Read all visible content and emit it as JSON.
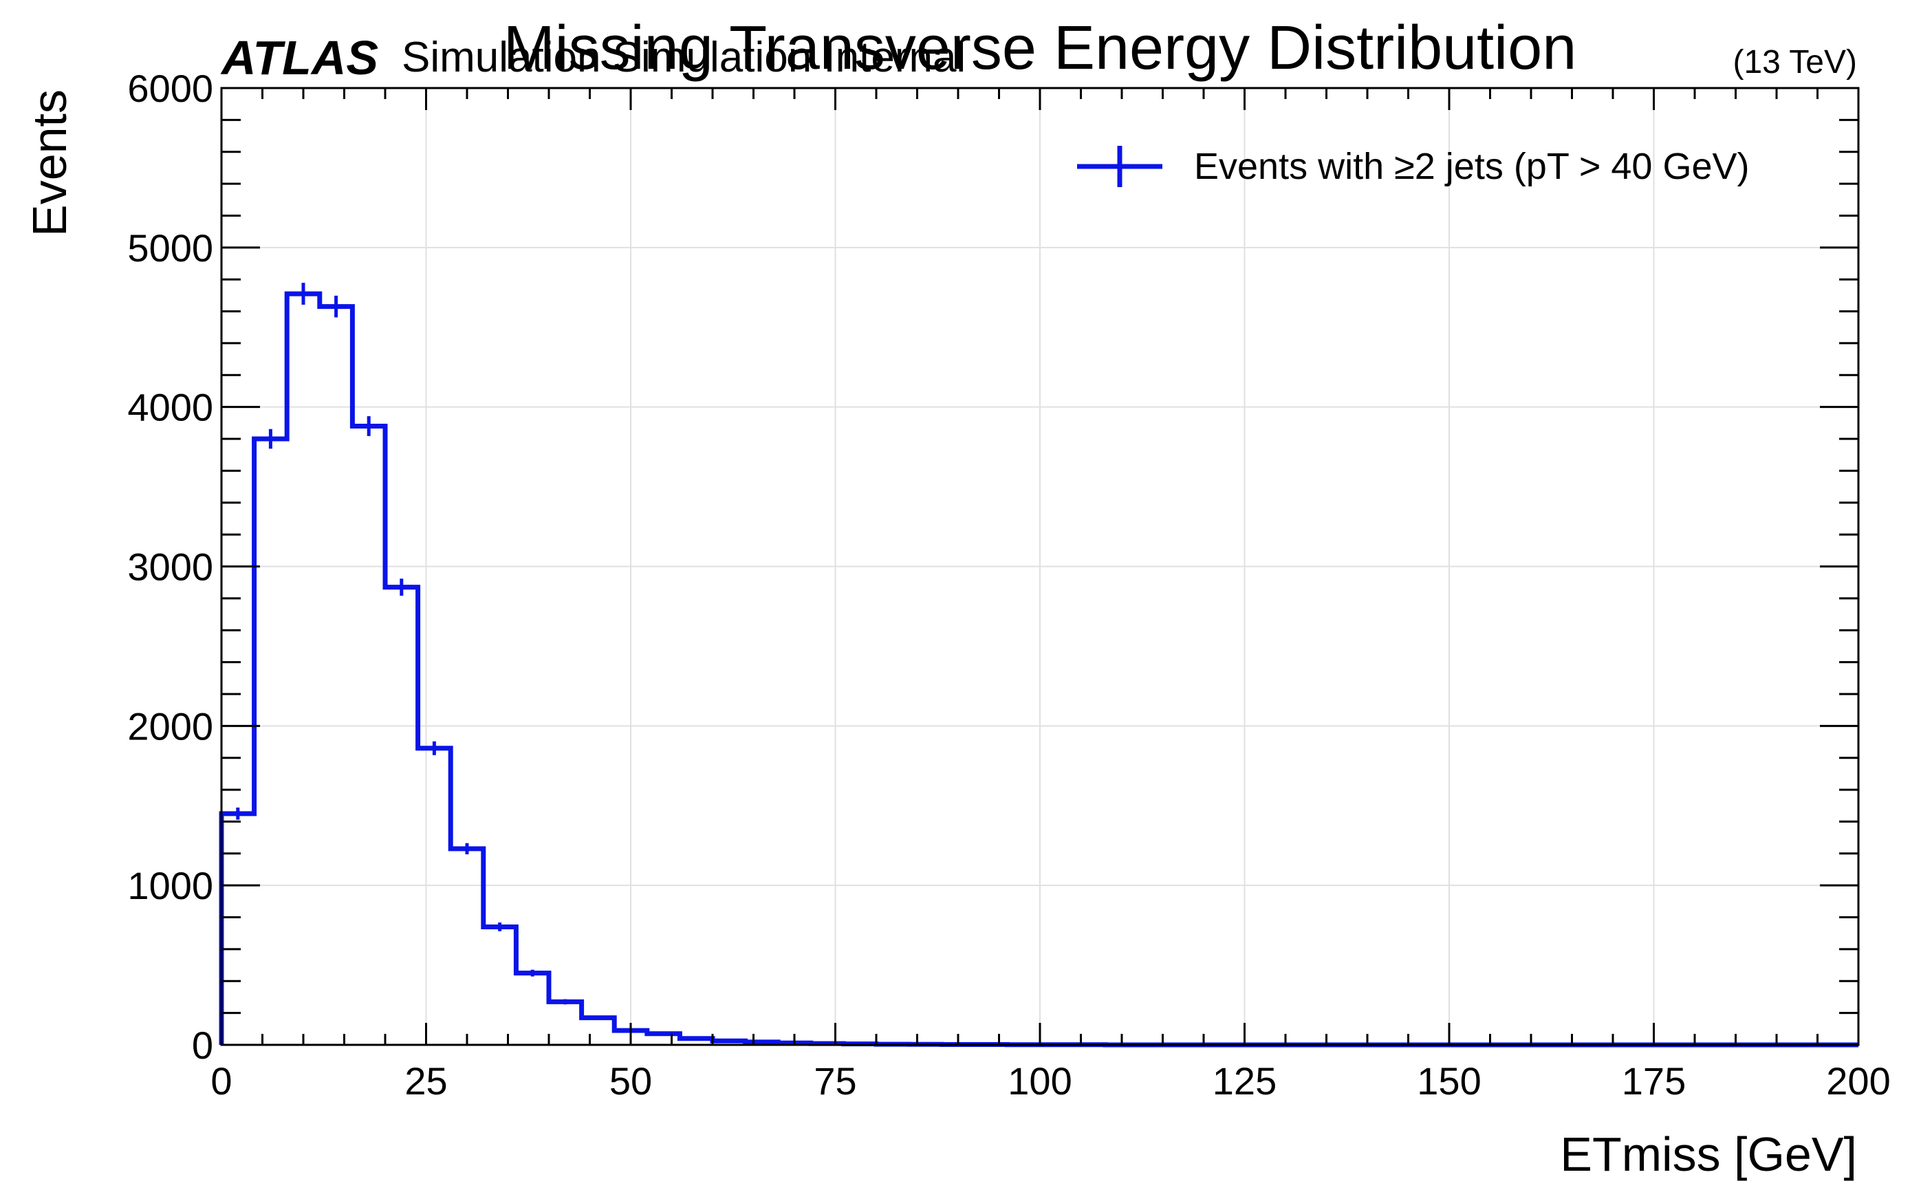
{
  "chart_data": {
    "type": "histogram",
    "title": "Missing Transverse Energy Distribution",
    "experiment_label": "ATLAS",
    "experiment_sublabel": "Simulation Simulation Internal",
    "energy_label": "(13 TeV)",
    "xlabel": "ETmiss [GeV]",
    "ylabel": "Events",
    "xlim": [
      0,
      200
    ],
    "ylim": [
      0,
      6000
    ],
    "x_ticks": [
      0,
      25,
      50,
      75,
      100,
      125,
      150,
      175,
      200
    ],
    "x_tick_labels": [
      "0",
      "25",
      "50",
      "75",
      "100",
      "125",
      "150",
      "175",
      "200"
    ],
    "y_ticks": [
      0,
      1000,
      2000,
      3000,
      4000,
      5000,
      6000
    ],
    "y_tick_labels": [
      "0",
      "1000",
      "2000",
      "3000",
      "4000",
      "5000",
      "6000"
    ],
    "grid": true,
    "legend_position": "top-right",
    "series": [
      {
        "name": "Events with ≥2 jets (pT > 40 GeV)",
        "color": "#0a14e8",
        "bin_edges": [
          0,
          4,
          8,
          12,
          16,
          20,
          24,
          28,
          32,
          36,
          40,
          44,
          48,
          52,
          56,
          60,
          64,
          68,
          72,
          76,
          80,
          84,
          88,
          92,
          96,
          100,
          104,
          108,
          112,
          116,
          120,
          124,
          128,
          132,
          136,
          140,
          144,
          148,
          152,
          156,
          160,
          164,
          168,
          172,
          176,
          180,
          184,
          188,
          192,
          196,
          200
        ],
        "values": [
          1450,
          3800,
          4710,
          4630,
          3880,
          2870,
          1860,
          1230,
          740,
          450,
          270,
          170,
          90,
          70,
          40,
          25,
          18,
          12,
          8,
          6,
          4,
          3,
          2,
          2,
          1,
          1,
          1,
          0,
          0,
          0,
          0,
          0,
          0,
          0,
          0,
          0,
          0,
          0,
          0,
          0,
          0,
          0,
          0,
          0,
          0,
          0,
          0,
          0,
          0,
          0
        ]
      }
    ]
  }
}
